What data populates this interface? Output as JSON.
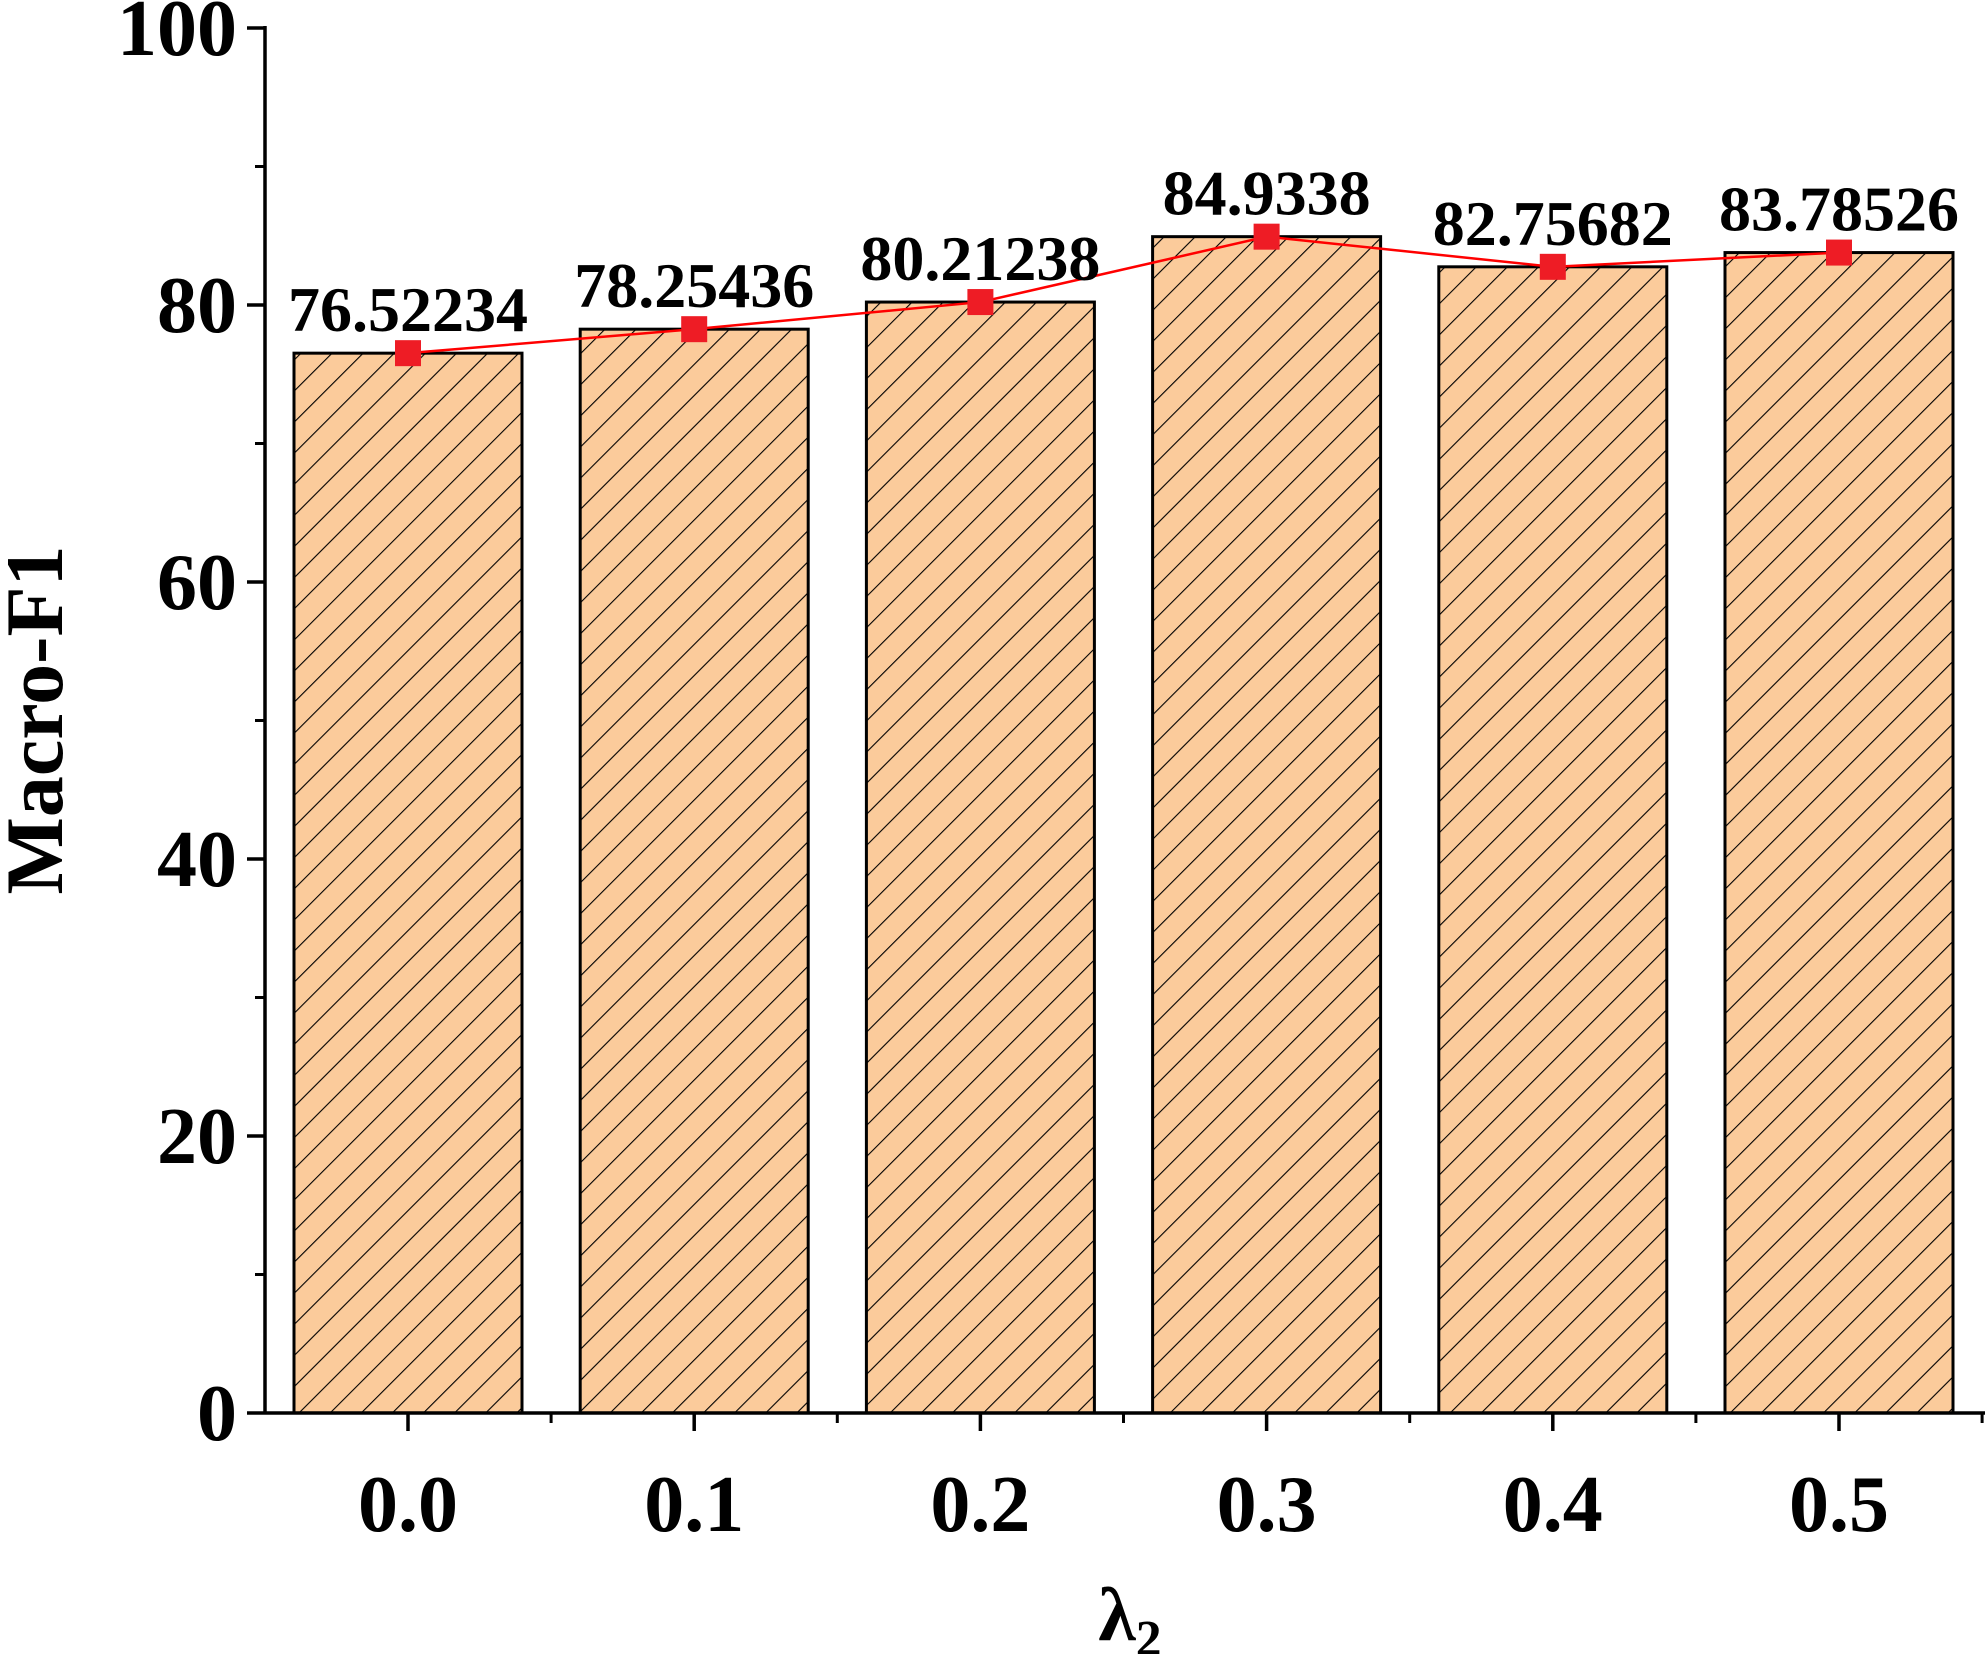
{
  "chart_data": {
    "type": "bar",
    "categories": [
      "0.0",
      "0.1",
      "0.2",
      "0.3",
      "0.4",
      "0.5"
    ],
    "values": [
      76.52234,
      78.25436,
      80.21238,
      84.9338,
      82.75682,
      83.78526
    ],
    "data_labels": [
      "76.52234",
      "78.25436",
      "80.21238",
      "84.9338",
      "82.75682",
      "83.78526"
    ],
    "overlay_line": true,
    "xlabel_main": "λ",
    "xlabel_sub": "2",
    "ylabel": "Macro-F1",
    "ylim": [
      0,
      100
    ],
    "yticks": [
      "0",
      "20",
      "40",
      "60",
      "80",
      "100"
    ],
    "grid": false,
    "colors": {
      "bar_fill": "#fbcb9b",
      "bar_hatch": "#000000",
      "line": "#ff0000",
      "marker": "#ee1c25"
    }
  }
}
